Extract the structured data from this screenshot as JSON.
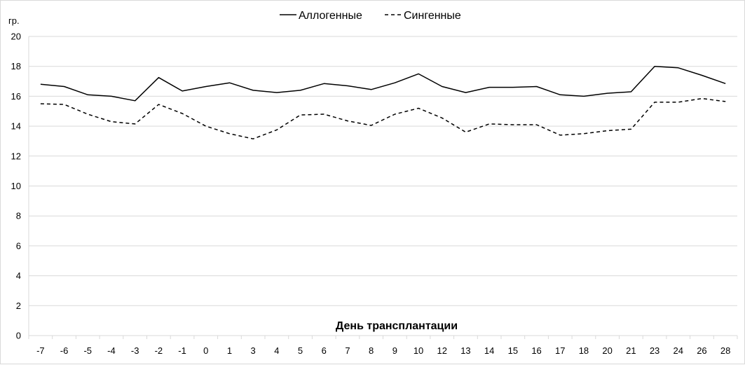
{
  "chart_data": {
    "type": "line",
    "ylabel": "гр.",
    "xlabel": "День трансплантации",
    "ylim": [
      0,
      20
    ],
    "yticks": [
      0,
      2,
      4,
      6,
      8,
      10,
      12,
      14,
      16,
      18,
      20
    ],
    "grid": true,
    "legend": "top-center",
    "categories": [
      "-7",
      "-6",
      "-5",
      "-4",
      "-3",
      "-2",
      "-1",
      "0",
      "1",
      "3",
      "4",
      "5",
      "6",
      "7",
      "8",
      "9",
      "10",
      "12",
      "13",
      "14",
      "15",
      "16",
      "17",
      "18",
      "20",
      "21",
      "23",
      "24",
      "26",
      "28"
    ],
    "series": [
      {
        "name": "Аллогенные",
        "dash": "solid",
        "values": [
          16.8,
          16.65,
          16.1,
          16.0,
          15.7,
          17.25,
          16.35,
          16.65,
          16.9,
          16.4,
          16.25,
          16.4,
          16.85,
          16.7,
          16.45,
          16.9,
          17.5,
          16.65,
          16.25,
          16.6,
          16.6,
          16.65,
          16.1,
          16.0,
          16.2,
          16.3,
          18.0,
          17.9,
          17.4,
          16.85
        ]
      },
      {
        "name": "Сингенные",
        "dash": "dashed",
        "values": [
          15.5,
          15.45,
          14.8,
          14.3,
          14.15,
          15.45,
          14.85,
          14.0,
          13.5,
          13.15,
          13.75,
          14.75,
          14.8,
          14.35,
          14.05,
          14.8,
          15.2,
          14.55,
          13.6,
          14.15,
          14.1,
          14.1,
          13.4,
          13.5,
          13.7,
          13.8,
          15.6,
          15.6,
          15.85,
          15.65
        ]
      }
    ],
    "line_color": "#000000",
    "grid_color": "#d9d9d9"
  }
}
